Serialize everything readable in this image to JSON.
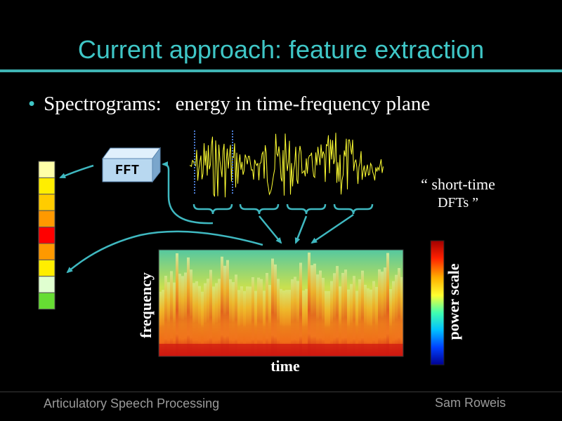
{
  "slide": {
    "title": "Current approach: feature extraction",
    "bullet": {
      "lead": "Spectrograms:",
      "text": "energy in time-frequency plane"
    }
  },
  "diagram": {
    "fft_box_label": "FFT",
    "short_time_line1": "“ short-time",
    "short_time_line2": "DFTs ”",
    "frequency_axis_label": "frequency",
    "time_axis_label": "time",
    "power_scale_label": "power scale",
    "feature_vector_colors": [
      "#ffffa8",
      "#ffee00",
      "#ffcc00",
      "#ff9900",
      "#ff0000",
      "#ff9900",
      "#ffee00",
      "#e0ffd0",
      "#66dd33"
    ],
    "colors": {
      "accent": "#3fc6c6",
      "waveform": "#ffff33",
      "arrow": "#3fb8c0",
      "fft_box": "#b8d8f0"
    }
  },
  "footer": {
    "left": "Articulatory Speech Processing",
    "right": "Sam Roweis"
  }
}
